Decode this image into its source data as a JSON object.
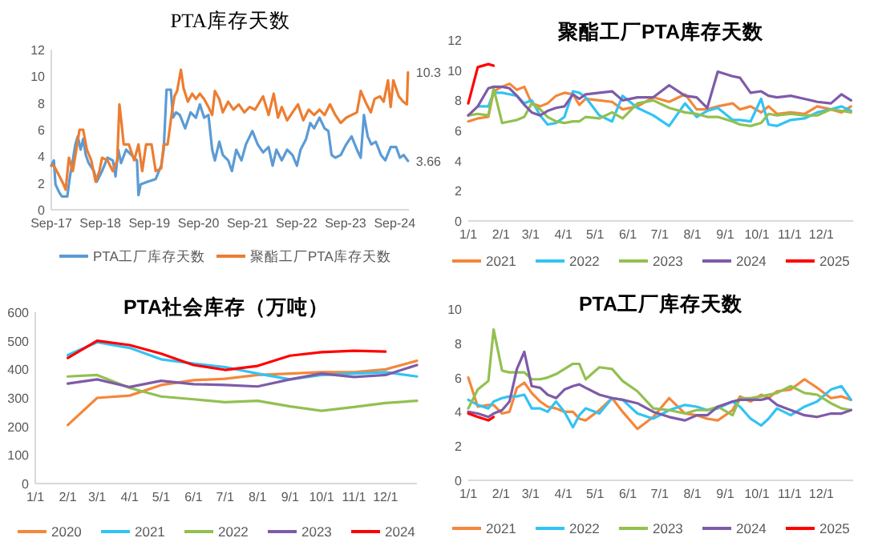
{
  "chart_data": [
    {
      "type": "line",
      "title": "PTA库存天数",
      "xlim": [
        "2017-09-01",
        "2024-12-16"
      ],
      "xticks": [
        {
          "value": "2017-09-01",
          "label": "Sep-17"
        },
        {
          "value": "2018-09-01",
          "label": "Sep-18"
        },
        {
          "value": "2019-09-01",
          "label": "Sep-19"
        },
        {
          "value": "2020-09-01",
          "label": "Sep-20"
        },
        {
          "value": "2021-09-01",
          "label": "Sep-21"
        },
        {
          "value": "2022-09-01",
          "label": "Sep-22"
        },
        {
          "value": "2023-09-01",
          "label": "Sep-23"
        },
        {
          "value": "2024-09-01",
          "label": "Sep-24"
        }
      ],
      "ylim": [
        0,
        12
      ],
      "yticks": [
        0,
        2,
        4,
        6,
        8,
        10,
        12
      ],
      "legend": "bottom",
      "annotations": [
        {
          "text": "10.3",
          "x": "2024-12-09",
          "y": 10.3
        },
        {
          "text": "3.66",
          "x": "2024-12-09",
          "y": 3.66
        }
      ],
      "series": [
        {
          "name": "PTA工厂库存天数",
          "color": "#5b9bd5",
          "x": [
            "2017-09-01",
            "2017-09-20",
            "2017-10-02",
            "2017-10-30",
            "2017-11-19",
            "2017-12-29",
            "2018-01-18",
            "2018-02-08",
            "2018-02-27",
            "2018-03-17",
            "2018-04-07",
            "2018-04-26",
            "2018-05-16",
            "2018-06-06",
            "2018-07-15",
            "2018-08-05",
            "2018-09-14",
            "2018-10-24",
            "2018-12-03",
            "2018-12-23",
            "2019-01-13",
            "2019-02-02",
            "2019-03-12",
            "2019-04-21",
            "2019-06-01",
            "2019-06-12",
            "2019-06-28",
            "2019-08-19",
            "2019-10-18",
            "2019-11-28",
            "2019-12-17",
            "2020-01-07",
            "2020-02-08",
            "2020-02-24",
            "2020-03-18",
            "2020-04-15",
            "2020-05-25",
            "2020-07-04",
            "2020-08-13",
            "2020-09-11",
            "2020-10-13",
            "2020-11-14",
            "2020-12-12",
            "2021-01-01",
            "2021-02-03",
            "2021-03-01",
            "2021-04-10",
            "2021-05-08",
            "2021-06-09",
            "2021-07-18",
            "2021-08-20",
            "2021-10-07",
            "2021-11-16",
            "2021-12-26",
            "2022-02-05",
            "2022-03-07",
            "2022-04-04",
            "2022-05-14",
            "2022-06-23",
            "2022-08-02",
            "2022-09-04",
            "2022-10-01",
            "2022-11-11",
            "2022-12-12",
            "2023-01-10",
            "2023-02-19",
            "2023-03-29",
            "2023-04-26",
            "2023-05-20",
            "2023-06-17",
            "2023-07-27",
            "2023-09-06",
            "2023-10-16",
            "2023-11-25",
            "2023-12-23",
            "2024-01-16",
            "2024-02-13",
            "2024-03-11",
            "2024-04-13",
            "2024-05-22",
            "2024-06-23",
            "2024-08-02",
            "2024-09-12",
            "2024-10-10",
            "2024-11-07",
            "2024-12-09"
          ],
          "values": [
            3.3,
            3.7,
            1.9,
            1.3,
            1.0,
            1.0,
            2.5,
            3.7,
            4.9,
            5.5,
            4.5,
            5.3,
            4.1,
            3.5,
            2.9,
            2.1,
            2.9,
            3.9,
            3.7,
            2.5,
            4.5,
            3.5,
            4.5,
            4.1,
            3.7,
            1.1,
            1.9,
            2.1,
            2.3,
            3.3,
            4.5,
            9.0,
            9.0,
            6.9,
            7.3,
            7.1,
            6.1,
            7.3,
            6.9,
            7.9,
            6.9,
            7.1,
            4.5,
            3.7,
            5.1,
            4.1,
            3.7,
            2.9,
            4.5,
            3.7,
            4.9,
            5.9,
            4.9,
            4.3,
            4.7,
            3.3,
            4.5,
            3.7,
            4.5,
            4.1,
            3.3,
            4.5,
            5.3,
            6.5,
            6.1,
            6.9,
            6.1,
            5.9,
            4.1,
            3.9,
            4.1,
            4.9,
            5.5,
            4.5,
            3.9,
            7.1,
            5.5,
            4.9,
            5.1,
            4.1,
            3.7,
            4.7,
            4.7,
            3.9,
            4.1,
            3.66
          ]
        },
        {
          "name": "聚酯工厂PTA库存天数",
          "color": "#ed7d31",
          "x": [
            "2017-09-01",
            "2017-09-20",
            "2017-10-22",
            "2017-12-01",
            "2017-12-17",
            "2018-01-10",
            "2018-02-08",
            "2018-03-06",
            "2018-03-30",
            "2018-04-26",
            "2018-05-24",
            "2018-06-26",
            "2018-07-28",
            "2018-08-25",
            "2018-09-14",
            "2018-10-24",
            "2018-12-03",
            "2019-01-05",
            "2019-01-21",
            "2019-02-06",
            "2019-02-22",
            "2019-04-01",
            "2019-05-11",
            "2019-06-12",
            "2019-07-10",
            "2019-08-08",
            "2019-09-17",
            "2019-10-18",
            "2019-11-28",
            "2019-12-17",
            "2020-01-15",
            "2020-02-16",
            "2020-03-06",
            "2020-03-26",
            "2020-04-23",
            "2020-05-13",
            "2020-06-14",
            "2020-07-16",
            "2020-08-13",
            "2020-09-11",
            "2020-10-13",
            "2020-11-14",
            "2020-12-12",
            "2021-01-01",
            "2021-02-03",
            "2021-03-01",
            "2021-04-10",
            "2021-05-19",
            "2021-06-28",
            "2021-08-08",
            "2021-09-17",
            "2021-10-27",
            "2021-12-26",
            "2022-02-05",
            "2022-03-15",
            "2022-04-16",
            "2022-05-14",
            "2022-06-23",
            "2022-08-02",
            "2022-09-12",
            "2022-10-21",
            "2022-11-30",
            "2023-01-10",
            "2023-02-19",
            "2023-03-29",
            "2023-05-08",
            "2023-06-17",
            "2023-07-27",
            "2023-09-06",
            "2023-10-16",
            "2023-11-25",
            "2023-12-23",
            "2024-02-05",
            "2024-03-07",
            "2024-04-04",
            "2024-05-14",
            "2024-06-11",
            "2024-07-13",
            "2024-08-02",
            "2024-08-22",
            "2024-10-01",
            "2024-11-03",
            "2024-12-01",
            "2024-12-09"
          ],
          "values": [
            3.3,
            3.3,
            2.7,
            1.9,
            1.5,
            3.9,
            2.9,
            4.5,
            6.0,
            6.0,
            4.5,
            3.7,
            2.1,
            2.9,
            3.9,
            3.7,
            2.9,
            3.7,
            7.9,
            6.5,
            4.9,
            4.9,
            3.7,
            4.9,
            2.9,
            4.9,
            4.9,
            2.9,
            3.1,
            4.9,
            4.9,
            7.3,
            8.5,
            8.9,
            10.5,
            9.1,
            8.1,
            8.7,
            8.3,
            8.7,
            8.3,
            7.7,
            7.1,
            8.9,
            8.3,
            7.3,
            8.1,
            7.5,
            7.9,
            7.3,
            7.7,
            7.5,
            8.5,
            7.1,
            8.7,
            6.9,
            7.7,
            6.7,
            7.3,
            7.9,
            6.7,
            7.5,
            7.1,
            7.5,
            7.1,
            7.9,
            7.1,
            6.5,
            6.9,
            7.1,
            7.3,
            8.9,
            7.9,
            7.3,
            8.3,
            8.5,
            8.1,
            9.7,
            7.7,
            9.7,
            8.5,
            8.1,
            7.9,
            10.3
          ]
        }
      ]
    },
    {
      "type": "line",
      "title": "聚酯工厂PTA库存天数",
      "xlim": [
        "--01-01",
        "--12-31"
      ],
      "xticks": [
        {
          "value": "--01-01",
          "label": "1/1"
        },
        {
          "value": "--02-01",
          "label": "2/1"
        },
        {
          "value": "--03-01",
          "label": "3/1"
        },
        {
          "value": "--04-01",
          "label": "4/1"
        },
        {
          "value": "--05-01",
          "label": "5/1"
        },
        {
          "value": "--06-01",
          "label": "6/1"
        },
        {
          "value": "--07-01",
          "label": "7/1"
        },
        {
          "value": "--08-01",
          "label": "8/1"
        },
        {
          "value": "--09-01",
          "label": "9/1"
        },
        {
          "value": "--10-01",
          "label": "10/1"
        },
        {
          "value": "--11-01",
          "label": "11/1"
        },
        {
          "value": "--12-01",
          "label": "12/1"
        }
      ],
      "ylim": [
        0,
        12
      ],
      "yticks": [
        0,
        2,
        4,
        6,
        8,
        10,
        12
      ],
      "legend": "bottom",
      "x": [
        "--01-01",
        "--01-10",
        "--01-20",
        "--01-25",
        "--02-02",
        "--02-09",
        "--02-16",
        "--02-23",
        "--03-02",
        "--03-10",
        "--03-17",
        "--03-25",
        "--04-02",
        "--04-10",
        "--04-16",
        "--04-22",
        "--05-05",
        "--05-17",
        "--05-27",
        "--06-10",
        "--06-25",
        "--07-10",
        "--07-25",
        "--08-05",
        "--08-15",
        "--08-25",
        "--09-08",
        "--09-15",
        "--09-25",
        "--10-05",
        "--10-12",
        "--10-20",
        "--11-02",
        "--11-15",
        "--11-27",
        "--12-10",
        "--12-20",
        "--12-29"
      ],
      "series": [
        {
          "name": "2021",
          "color": "#f4873a",
          "values": [
            6.6,
            6.8,
            6.9,
            8.6,
            8.9,
            9.1,
            8.7,
            8.9,
            7.8,
            7.6,
            7.8,
            8.3,
            8.5,
            8.4,
            7.7,
            8.1,
            8.0,
            7.9,
            7.4,
            7.6,
            8.2,
            7.9,
            8.4,
            7.4,
            7.4,
            7.6,
            7.8,
            7.4,
            7.6,
            7.2,
            7.6,
            7.1,
            7.2,
            7.1,
            7.6,
            7.4,
            7.2,
            7.6
          ]
        },
        {
          "name": "2022",
          "color": "#33c3f4",
          "values": [
            null,
            7.6,
            7.6,
            8.5,
            8.5,
            8.4,
            8.3,
            7.8,
            8.0,
            7.0,
            6.4,
            6.5,
            6.9,
            8.6,
            8.5,
            8.2,
            7.0,
            6.6,
            8.3,
            7.5,
            7.0,
            6.3,
            7.8,
            6.9,
            7.3,
            7.5,
            6.7,
            6.7,
            6.6,
            8.1,
            6.4,
            6.3,
            6.7,
            6.8,
            7.2,
            7.4,
            7.6,
            7.3
          ]
        },
        {
          "name": "2023",
          "color": "#92c050",
          "values": [
            7.0,
            7.1,
            7.0,
            8.8,
            6.5,
            6.6,
            6.7,
            6.9,
            7.8,
            7.4,
            6.9,
            6.6,
            6.5,
            6.6,
            6.6,
            6.9,
            6.8,
            7.2,
            6.8,
            7.8,
            8.0,
            7.5,
            7.2,
            7.1,
            6.9,
            6.9,
            6.6,
            6.4,
            6.3,
            6.5,
            7.1,
            7.0,
            7.1,
            7.0,
            7.0,
            7.4,
            7.3,
            7.2
          ]
        },
        {
          "name": "2024",
          "color": "#7e5ba8",
          "values": [
            7.0,
            7.6,
            8.8,
            8.9,
            8.9,
            8.8,
            8.3,
            7.7,
            7.2,
            7.0,
            7.3,
            7.5,
            7.6,
            8.4,
            8.1,
            8.4,
            8.5,
            8.6,
            8.0,
            8.2,
            8.2,
            9.0,
            8.3,
            8.2,
            7.5,
            9.9,
            9.6,
            9.5,
            8.5,
            8.6,
            8.3,
            8.2,
            8.3,
            8.1,
            7.9,
            7.8,
            8.4,
            8.0
          ]
        },
        {
          "name": "2025",
          "color": "#ff0000",
          "x": [
            "--01-01",
            "--01-10",
            "--01-20",
            "--01-25"
          ],
          "values": [
            7.8,
            10.2,
            10.4,
            10.3
          ]
        }
      ]
    },
    {
      "type": "line",
      "title": "PTA社会库存（万吨）",
      "xlim": [
        "--01-01",
        "--12-31"
      ],
      "xticks": [
        {
          "value": "--01-01",
          "label": "1/1"
        },
        {
          "value": "--02-01",
          "label": "2/1"
        },
        {
          "value": "--03-01",
          "label": "3/1"
        },
        {
          "value": "--04-01",
          "label": "4/1"
        },
        {
          "value": "--05-01",
          "label": "5/1"
        },
        {
          "value": "--06-01",
          "label": "6/1"
        },
        {
          "value": "--07-01",
          "label": "7/1"
        },
        {
          "value": "--08-01",
          "label": "8/1"
        },
        {
          "value": "--09-01",
          "label": "9/1"
        },
        {
          "value": "--10-01",
          "label": "10/1"
        },
        {
          "value": "--11-01",
          "label": "11/1"
        },
        {
          "value": "--12-01",
          "label": "12/1"
        }
      ],
      "ylim": [
        0,
        600
      ],
      "yticks": [
        0,
        100,
        200,
        300,
        400,
        500,
        600
      ],
      "legend": "bottom",
      "x": [
        "--02-01",
        "--03-01",
        "--04-01",
        "--05-01",
        "--06-01",
        "--07-01",
        "--08-01",
        "--09-01",
        "--10-01",
        "--11-01",
        "--12-01",
        "--12-31"
      ],
      "series": [
        {
          "name": "2020",
          "color": "#f4873a",
          "values": [
            205,
            300,
            308,
            345,
            362,
            367,
            380,
            385,
            390,
            390,
            400,
            430
          ]
        },
        {
          "name": "2021",
          "color": "#33c3f4",
          "values": [
            450,
            495,
            475,
            435,
            420,
            408,
            385,
            365,
            380,
            385,
            390,
            375
          ]
        },
        {
          "name": "2022",
          "color": "#92c050",
          "values": [
            375,
            380,
            335,
            305,
            295,
            285,
            290,
            270,
            255,
            268,
            282,
            290
          ]
        },
        {
          "name": "2023",
          "color": "#7e5ba8",
          "values": [
            350,
            365,
            338,
            360,
            348,
            345,
            340,
            365,
            385,
            373,
            380,
            415
          ]
        },
        {
          "name": "2024",
          "color": "#ff0000",
          "values": [
            440,
            500,
            485,
            455,
            415,
            398,
            412,
            448,
            460,
            465,
            462,
            null
          ]
        }
      ]
    },
    {
      "type": "line",
      "title": "PTA工厂库存天数",
      "xlim": [
        "--01-01",
        "--12-31"
      ],
      "xticks": [
        {
          "value": "--01-01",
          "label": "1/1"
        },
        {
          "value": "--02-01",
          "label": "2/1"
        },
        {
          "value": "--03-01",
          "label": "3/1"
        },
        {
          "value": "--04-01",
          "label": "4/1"
        },
        {
          "value": "--05-01",
          "label": "5/1"
        },
        {
          "value": "--06-01",
          "label": "6/1"
        },
        {
          "value": "--07-01",
          "label": "7/1"
        },
        {
          "value": "--08-01",
          "label": "8/1"
        },
        {
          "value": "--09-01",
          "label": "9/1"
        },
        {
          "value": "--10-01",
          "label": "10/1"
        },
        {
          "value": "--11-01",
          "label": "11/1"
        },
        {
          "value": "--12-01",
          "label": "12/1"
        }
      ],
      "ylim": [
        0,
        10
      ],
      "yticks": [
        0,
        2,
        4,
        6,
        8,
        10
      ],
      "legend": "bottom",
      "x": [
        "--01-01",
        "--01-10",
        "--01-20",
        "--01-25",
        "--02-02",
        "--02-09",
        "--02-16",
        "--02-23",
        "--03-02",
        "--03-10",
        "--03-17",
        "--03-25",
        "--04-02",
        "--04-10",
        "--04-16",
        "--04-22",
        "--05-05",
        "--05-17",
        "--05-27",
        "--06-10",
        "--06-25",
        "--07-10",
        "--07-25",
        "--08-05",
        "--08-15",
        "--08-25",
        "--09-08",
        "--09-15",
        "--09-25",
        "--10-05",
        "--10-12",
        "--10-20",
        "--11-02",
        "--11-15",
        "--11-27",
        "--12-10",
        "--12-20",
        "--12-29"
      ],
      "series": [
        {
          "name": "2021",
          "color": "#f4873a",
          "values": [
            6.0,
            4.3,
            4.4,
            4.4,
            3.9,
            4.0,
            5.4,
            5.7,
            5.1,
            4.6,
            4.3,
            4.2,
            4.0,
            4.0,
            3.6,
            3.5,
            4.1,
            4.8,
            4.0,
            3.0,
            3.7,
            4.8,
            3.9,
            3.8,
            3.6,
            3.5,
            4.1,
            4.9,
            4.6,
            5.0,
            4.8,
            5.2,
            5.3,
            5.9,
            5.4,
            4.8,
            4.9,
            4.7
          ]
        },
        {
          "name": "2022",
          "color": "#33c3f4",
          "values": [
            4.7,
            4.4,
            4.2,
            4.6,
            4.8,
            4.9,
            4.9,
            5.0,
            4.2,
            4.2,
            4.0,
            4.6,
            4.0,
            3.1,
            3.8,
            4.2,
            3.9,
            4.8,
            4.7,
            3.9,
            3.6,
            4.1,
            4.4,
            4.3,
            4.1,
            4.2,
            4.6,
            4.3,
            3.6,
            3.2,
            3.6,
            4.2,
            3.8,
            4.3,
            4.6,
            5.3,
            5.5,
            4.7
          ]
        },
        {
          "name": "2023",
          "color": "#92c050",
          "values": [
            4.2,
            5.3,
            5.8,
            8.8,
            6.4,
            6.3,
            6.3,
            6.3,
            5.9,
            5.9,
            6.0,
            6.2,
            6.5,
            6.8,
            6.8,
            5.9,
            6.6,
            6.5,
            5.8,
            5.2,
            4.2,
            4.1,
            3.9,
            4.1,
            4.1,
            4.3,
            3.8,
            4.8,
            4.8,
            4.9,
            5.0,
            5.1,
            5.5,
            5.1,
            5.0,
            4.5,
            4.2,
            4.1
          ]
        },
        {
          "name": "2024",
          "color": "#7e5ba8",
          "values": [
            4.0,
            3.9,
            3.7,
            3.9,
            4.1,
            4.6,
            6.5,
            7.5,
            5.5,
            5.4,
            5.0,
            4.8,
            5.3,
            5.5,
            5.6,
            5.4,
            5.0,
            4.8,
            4.7,
            4.5,
            4.0,
            3.7,
            3.5,
            3.8,
            3.8,
            4.3,
            4.6,
            4.7,
            4.7,
            4.7,
            4.8,
            4.4,
            4.1,
            3.8,
            3.7,
            3.9,
            3.9,
            4.1
          ]
        },
        {
          "name": "2025",
          "color": "#ff0000",
          "x": [
            "--01-01",
            "--01-10",
            "--01-20",
            "--01-25"
          ],
          "values": [
            3.9,
            3.7,
            3.5,
            3.7
          ]
        }
      ]
    }
  ]
}
